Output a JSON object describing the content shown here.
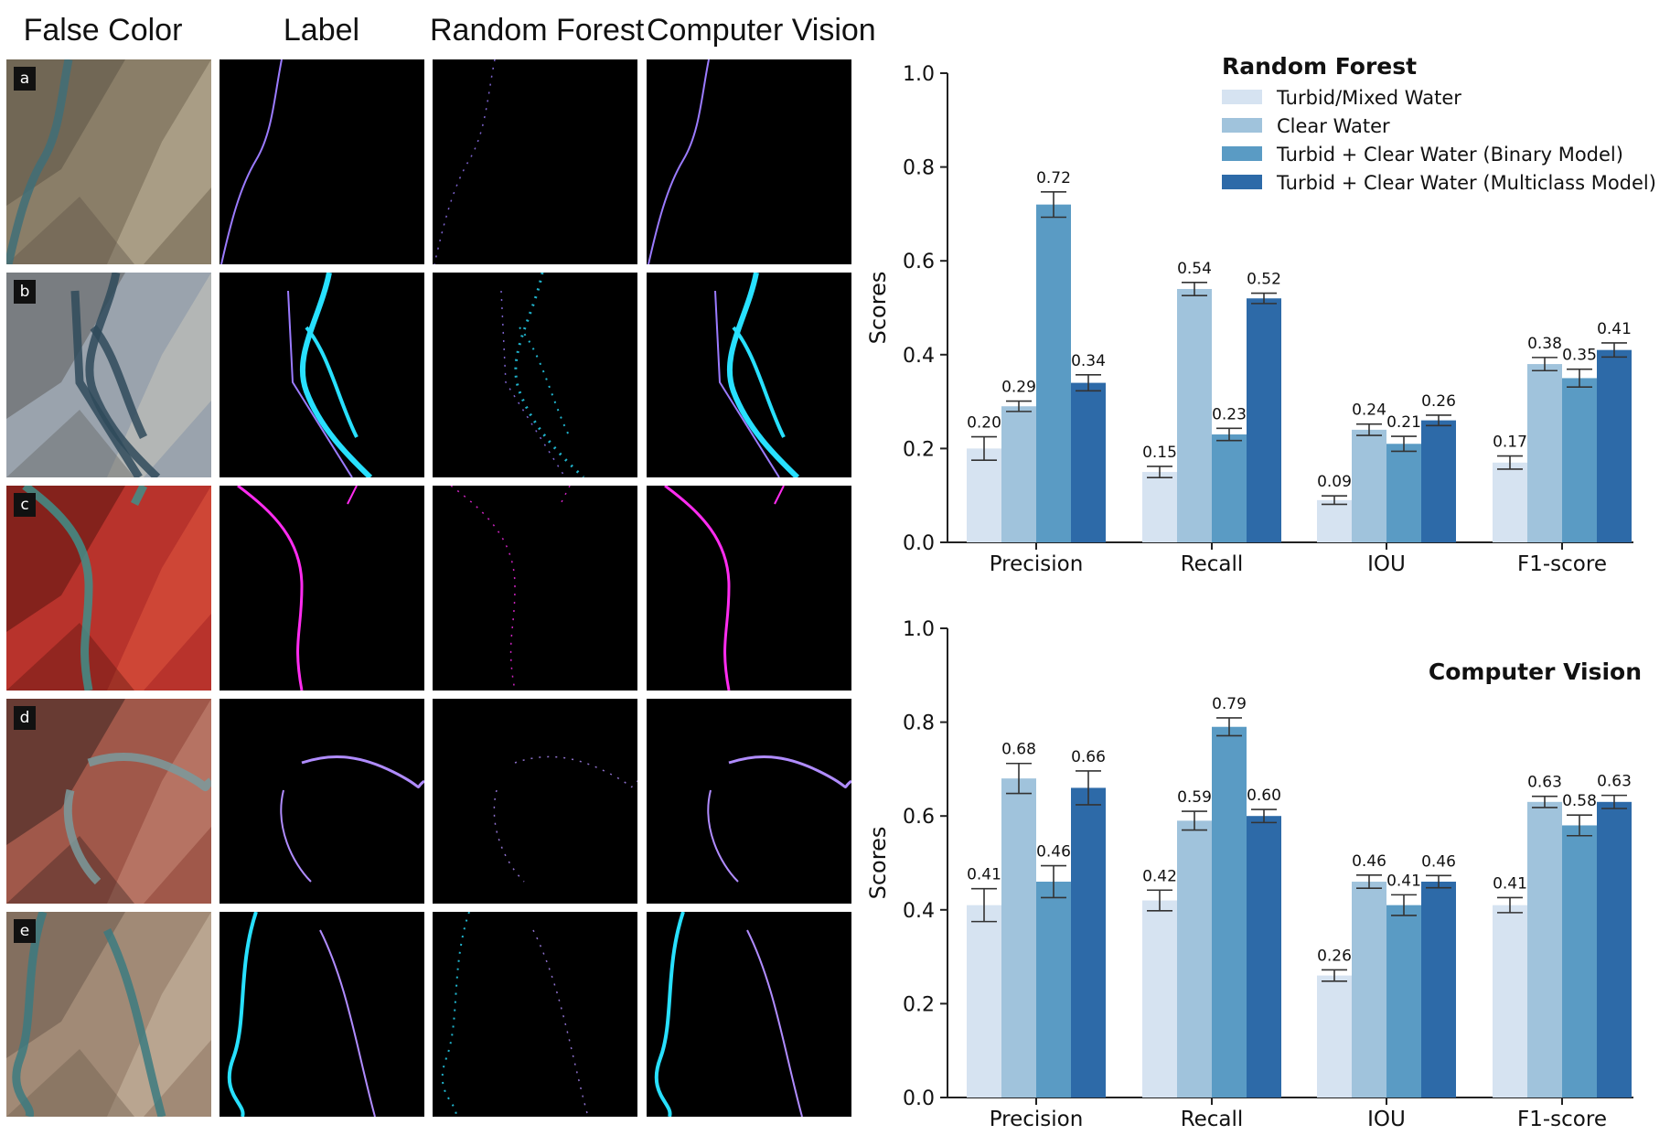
{
  "panel_headers": [
    "False Color",
    "Label",
    "Random Forest",
    "Computer Vision"
  ],
  "row_letters": [
    "a",
    "b",
    "c",
    "d",
    "e"
  ],
  "chart_data": [
    {
      "type": "bar",
      "title": "Random Forest",
      "xlabel": "",
      "ylabel": "Scores",
      "ylim": [
        0,
        1.0
      ],
      "yticks": [
        "0.0",
        "0.2",
        "0.4",
        "0.6",
        "0.8",
        "1.0"
      ],
      "categories": [
        "Precision",
        "Recall",
        "IOU",
        "F1-score"
      ],
      "legend_position": "top-right",
      "series": [
        {
          "name": "Turbid/Mixed Water",
          "color": "#d6e3f1",
          "values": [
            0.2,
            0.15,
            0.09,
            0.17
          ],
          "labels": [
            "0.20",
            "0.15",
            "0.09",
            "0.17"
          ],
          "err": [
            0.025,
            0.012,
            0.009,
            0.014
          ]
        },
        {
          "name": "Clear Water",
          "color": "#a0c3dc",
          "values": [
            0.29,
            0.54,
            0.24,
            0.38
          ],
          "labels": [
            "0.29",
            "0.54",
            "0.24",
            "0.38"
          ],
          "err": [
            0.011,
            0.014,
            0.012,
            0.014
          ]
        },
        {
          "name": "Turbid + Clear Water (Binary Model)",
          "color": "#5a9bc4",
          "values": [
            0.72,
            0.23,
            0.21,
            0.35
          ],
          "labels": [
            "0.72",
            "0.23",
            "0.21",
            "0.35"
          ],
          "err": [
            0.027,
            0.013,
            0.016,
            0.019
          ]
        },
        {
          "name": "Turbid + Clear Water (Multiclass Model)",
          "color": "#2d6aa8",
          "values": [
            0.34,
            0.52,
            0.26,
            0.41
          ],
          "labels": [
            "0.34",
            "0.52",
            "0.26",
            "0.41"
          ],
          "err": [
            0.017,
            0.011,
            0.011,
            0.015
          ]
        }
      ]
    },
    {
      "type": "bar",
      "title": "Computer Vision",
      "xlabel": "",
      "ylabel": "Scores",
      "ylim": [
        0,
        1.0
      ],
      "yticks": [
        "0.0",
        "0.2",
        "0.4",
        "0.6",
        "0.8",
        "1.0"
      ],
      "categories": [
        "Precision",
        "Recall",
        "IOU",
        "F1-score"
      ],
      "series": [
        {
          "name": "Turbid/Mixed Water",
          "color": "#d6e3f1",
          "values": [
            0.41,
            0.42,
            0.26,
            0.41
          ],
          "labels": [
            "0.41",
            "0.42",
            "0.26",
            "0.41"
          ],
          "err": [
            0.035,
            0.022,
            0.012,
            0.016
          ]
        },
        {
          "name": "Clear Water",
          "color": "#a0c3dc",
          "values": [
            0.68,
            0.59,
            0.46,
            0.63
          ],
          "labels": [
            "0.68",
            "0.59",
            "0.46",
            "0.63"
          ],
          "err": [
            0.032,
            0.02,
            0.014,
            0.012
          ]
        },
        {
          "name": "Turbid + Clear Water (Binary Model)",
          "color": "#5a9bc4",
          "values": [
            0.46,
            0.79,
            0.41,
            0.58
          ],
          "labels": [
            "0.46",
            "0.79",
            "0.41",
            "0.58"
          ],
          "err": [
            0.034,
            0.019,
            0.022,
            0.022
          ]
        },
        {
          "name": "Turbid + Clear Water (Multiclass Model)",
          "color": "#2d6aa8",
          "values": [
            0.66,
            0.6,
            0.46,
            0.63
          ],
          "labels": [
            "0.66",
            "0.60",
            "0.46",
            "0.63"
          ],
          "err": [
            0.036,
            0.014,
            0.013,
            0.014
          ]
        }
      ]
    }
  ]
}
